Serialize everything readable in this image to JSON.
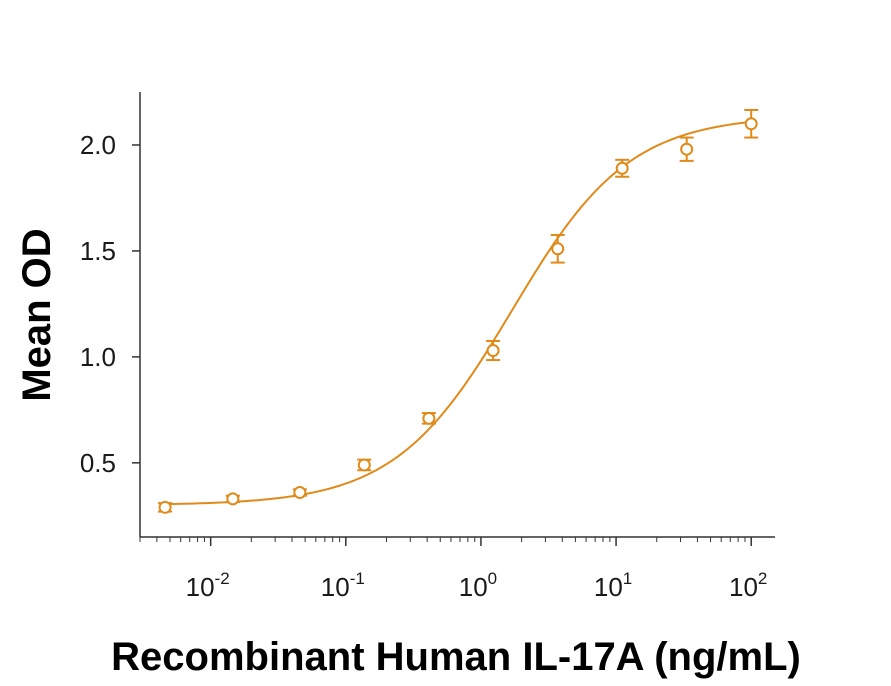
{
  "chart_data": {
    "type": "scatter",
    "title": "",
    "xlabel": "Recombinant Human IL-17A (ng/mL)",
    "ylabel": "Mean OD",
    "x_scale": "log",
    "xlim": [
      0.003,
      150
    ],
    "ylim": [
      0.15,
      2.25
    ],
    "x_ticks": [
      {
        "value": 0.01,
        "base": "10",
        "exp": "-2"
      },
      {
        "value": 0.1,
        "base": "10",
        "exp": "-1"
      },
      {
        "value": 1,
        "base": "10",
        "exp": "0"
      },
      {
        "value": 10,
        "base": "10",
        "exp": "1"
      },
      {
        "value": 100,
        "base": "10",
        "exp": "2"
      }
    ],
    "y_ticks": [
      {
        "value": 0.5,
        "label": "0.5"
      },
      {
        "value": 1.0,
        "label": "1.0"
      },
      {
        "value": 1.5,
        "label": "1.5"
      },
      {
        "value": 2.0,
        "label": "2.0"
      }
    ],
    "grid": false,
    "color": "#E08A1A",
    "series": [
      {
        "x": [
          0.0046,
          0.0146,
          0.0457,
          0.137,
          0.412,
          1.23,
          3.7,
          11.1,
          33.3,
          100
        ],
        "y": [
          0.29,
          0.33,
          0.36,
          0.49,
          0.71,
          1.03,
          1.51,
          1.89,
          1.98,
          2.1
        ],
        "err": [
          0.02,
          0.015,
          0.015,
          0.025,
          0.025,
          0.045,
          0.065,
          0.04,
          0.055,
          0.065
        ]
      }
    ],
    "fit": {
      "type": "4PL",
      "bottom": 0.3,
      "top": 2.14,
      "ec50": 1.7,
      "hill": 1.0
    }
  }
}
